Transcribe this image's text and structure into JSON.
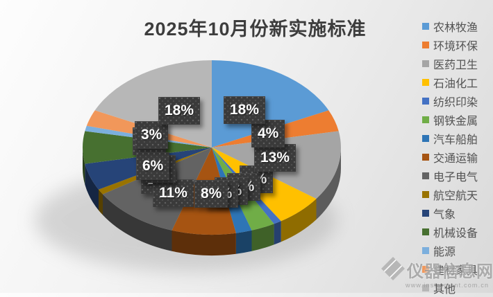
{
  "title": "2025年10月份新实施标准",
  "chart_data": {
    "type": "pie",
    "is_3d": true,
    "title": "2025年10月份新实施标准",
    "legend_position": "right",
    "grid": false,
    "categories": [
      "农林牧渔",
      "环境环保",
      "医药卫生",
      "石油化工",
      "纺织印染",
      "钢铁金属",
      "汽车船舶",
      "交通运输",
      "电子电气",
      "航空航天",
      "气象",
      "机械设备",
      "能源",
      "建材家具",
      "其他"
    ],
    "values": [
      18,
      4,
      13,
      6,
      1,
      3,
      2,
      8,
      11,
      1,
      5,
      6,
      1,
      3,
      18
    ],
    "unit": "percent",
    "data_labels": [
      "18%",
      "4%",
      "13%",
      "6%",
      "1%",
      "3%",
      "2%",
      "8%",
      "11%",
      "1%",
      "5%",
      "6%",
      "1%",
      "3%",
      "18%"
    ],
    "colors": [
      "#5B9BD5",
      "#ED7D31",
      "#A5A5A5",
      "#FFC000",
      "#4472C4",
      "#70AD47",
      "#2E75B6",
      "#A65412",
      "#636363",
      "#997300",
      "#264478",
      "#477030",
      "#7CAFDD",
      "#F1975A",
      "#B7B7B7"
    ],
    "label_style": {
      "box_color": "#3a3a3a",
      "text_color": "#ffffff"
    }
  },
  "watermark": {
    "name": "仪器信息网",
    "url": "www.instrument.com.cn"
  }
}
